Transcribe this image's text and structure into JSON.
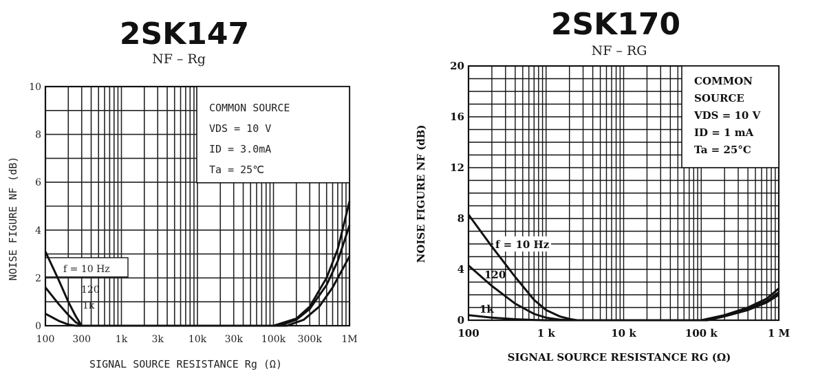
{
  "chart_data": [
    {
      "type": "line",
      "title": "2SK147",
      "subtitle": "NF – Rg",
      "xlabel": "SIGNAL SOURCE RESISTANCE   Rg   (Ω)",
      "ylabel": "NOISE FIGURE   NF   (dB)",
      "x_scale": "log",
      "xlim": [
        100,
        1000000
      ],
      "ylim": [
        0,
        10
      ],
      "x_ticks": [
        100,
        300,
        1000,
        3000,
        10000,
        30000,
        100000,
        300000,
        1000000
      ],
      "x_tick_labels": [
        "100",
        "300",
        "1k",
        "3k",
        "10k",
        "30k",
        "100k",
        "300k",
        "1M"
      ],
      "y_ticks": [
        0,
        2,
        4,
        6,
        8,
        10
      ],
      "y_tick_labels": [
        "0",
        "2",
        "4",
        "6",
        "8",
        "10"
      ],
      "grid": true,
      "conditions": [
        "COMMON SOURCE",
        "VDS = 10 V",
        "ID  = 3.0mA",
        "Ta  = 25℃"
      ],
      "series": [
        {
          "name": "f = 10 Hz",
          "x": [
            100,
            150,
            200,
            250,
            300,
            100000,
            200000,
            300000,
            500000,
            700000,
            1000000
          ],
          "y": [
            3.1,
            1.9,
            1.0,
            0.4,
            0,
            0,
            0.3,
            0.8,
            2.0,
            3.2,
            5.2
          ]
        },
        {
          "name": "120",
          "x": [
            100,
            150,
            200,
            250,
            300,
            120000,
            200000,
            300000,
            500000,
            700000,
            1000000
          ],
          "y": [
            1.6,
            0.9,
            0.45,
            0.15,
            0,
            0,
            0.25,
            0.7,
            1.7,
            2.7,
            4.2
          ]
        },
        {
          "name": "1k",
          "x": [
            100,
            150,
            200,
            250,
            150000,
            250000,
            400000,
            600000,
            1000000
          ],
          "y": [
            0.5,
            0.2,
            0.05,
            0,
            0,
            0.25,
            0.8,
            1.6,
            2.9
          ]
        }
      ]
    },
    {
      "type": "line",
      "title": "2SK170",
      "subtitle": "NF – RG",
      "xlabel": "SIGNAL SOURCE RESISTANCE   RG   (Ω)",
      "ylabel": "NOISE FIGURE   NF   (dB)",
      "x_scale": "log",
      "xlim": [
        100,
        1000000
      ],
      "ylim": [
        0,
        20
      ],
      "x_ticks": [
        100,
        1000,
        10000,
        100000,
        1000000
      ],
      "x_tick_labels": [
        "100",
        "1 k",
        "10 k",
        "100 k",
        "1 M"
      ],
      "y_ticks": [
        0,
        4,
        8,
        12,
        16,
        20
      ],
      "y_tick_labels": [
        "0",
        "4",
        "8",
        "12",
        "16",
        "20"
      ],
      "grid": true,
      "conditions": [
        "COMMON",
        "SOURCE",
        "VDS = 10 V",
        "ID = 1 mA",
        "Ta = 25°C"
      ],
      "series": [
        {
          "name": "f = 10 Hz",
          "x": [
            100,
            200,
            400,
            700,
            1000,
            1500,
            2000,
            2500,
            100000,
            200000,
            400000,
            700000,
            1000000
          ],
          "y": [
            8.3,
            5.8,
            3.4,
            1.6,
            0.8,
            0.3,
            0.1,
            0,
            0,
            0.4,
            1.0,
            1.7,
            2.5
          ]
        },
        {
          "name": "120",
          "x": [
            100,
            200,
            400,
            700,
            1000,
            1500,
            2000,
            110000,
            200000,
            400000,
            700000,
            1000000
          ],
          "y": [
            4.3,
            2.7,
            1.3,
            0.5,
            0.2,
            0.05,
            0,
            0,
            0.35,
            0.9,
            1.5,
            2.2
          ]
        },
        {
          "name": "1k",
          "x": [
            100,
            200,
            400,
            700,
            1000,
            120000,
            200000,
            400000,
            700000,
            1000000
          ],
          "y": [
            0.4,
            0.2,
            0.08,
            0.02,
            0,
            0,
            0.3,
            0.8,
            1.4,
            2.0
          ]
        }
      ]
    }
  ]
}
